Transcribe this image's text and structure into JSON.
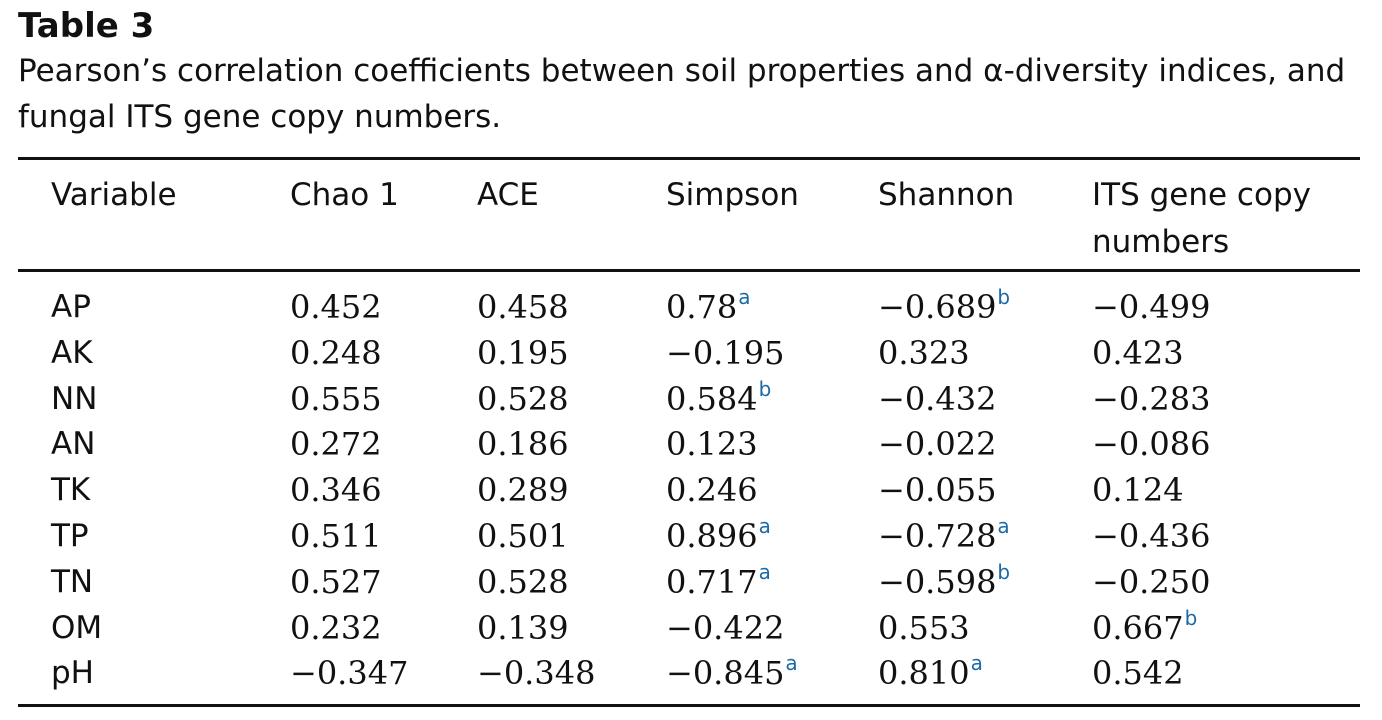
{
  "table": {
    "label": "Table 3",
    "caption": "Pearson’s correlation coefficients between soil properties and α-diversity indices, and fungal ITS gene copy numbers.",
    "columns": [
      "Variable",
      "Chao 1",
      "ACE",
      "Simpson",
      "Shannon",
      "ITS gene copy numbers"
    ],
    "rows": [
      {
        "cells": [
          {
            "v": "AP",
            "s": ""
          },
          {
            "v": "0.452",
            "s": ""
          },
          {
            "v": "0.458",
            "s": ""
          },
          {
            "v": "0.78",
            "s": "a"
          },
          {
            "v": "−0.689",
            "s": "b"
          },
          {
            "v": "−0.499",
            "s": ""
          }
        ]
      },
      {
        "cells": [
          {
            "v": "AK",
            "s": ""
          },
          {
            "v": "0.248",
            "s": ""
          },
          {
            "v": "0.195",
            "s": ""
          },
          {
            "v": "−0.195",
            "s": ""
          },
          {
            "v": "0.323",
            "s": ""
          },
          {
            "v": "0.423",
            "s": ""
          }
        ]
      },
      {
        "cells": [
          {
            "v": "NN",
            "s": ""
          },
          {
            "v": "0.555",
            "s": ""
          },
          {
            "v": "0.528",
            "s": ""
          },
          {
            "v": "0.584",
            "s": "b"
          },
          {
            "v": "−0.432",
            "s": ""
          },
          {
            "v": "−0.283",
            "s": ""
          }
        ]
      },
      {
        "cells": [
          {
            "v": "AN",
            "s": ""
          },
          {
            "v": "0.272",
            "s": ""
          },
          {
            "v": "0.186",
            "s": ""
          },
          {
            "v": "0.123",
            "s": ""
          },
          {
            "v": "−0.022",
            "s": ""
          },
          {
            "v": "−0.086",
            "s": ""
          }
        ]
      },
      {
        "cells": [
          {
            "v": "TK",
            "s": ""
          },
          {
            "v": "0.346",
            "s": ""
          },
          {
            "v": "0.289",
            "s": ""
          },
          {
            "v": "0.246",
            "s": ""
          },
          {
            "v": "−0.055",
            "s": ""
          },
          {
            "v": "0.124",
            "s": ""
          }
        ]
      },
      {
        "cells": [
          {
            "v": "TP",
            "s": ""
          },
          {
            "v": "0.511",
            "s": ""
          },
          {
            "v": "0.501",
            "s": ""
          },
          {
            "v": "0.896",
            "s": "a"
          },
          {
            "v": "−0.728",
            "s": "a"
          },
          {
            "v": "−0.436",
            "s": ""
          }
        ]
      },
      {
        "cells": [
          {
            "v": "TN",
            "s": ""
          },
          {
            "v": "0.527",
            "s": ""
          },
          {
            "v": "0.528",
            "s": ""
          },
          {
            "v": "0.717",
            "s": "a"
          },
          {
            "v": "−0.598",
            "s": "b"
          },
          {
            "v": "−0.250",
            "s": ""
          }
        ]
      },
      {
        "cells": [
          {
            "v": "OM",
            "s": ""
          },
          {
            "v": "0.232",
            "s": ""
          },
          {
            "v": "0.139",
            "s": ""
          },
          {
            "v": "−0.422",
            "s": ""
          },
          {
            "v": "0.553",
            "s": ""
          },
          {
            "v": "0.667",
            "s": "b"
          }
        ]
      },
      {
        "cells": [
          {
            "v": "pH",
            "s": ""
          },
          {
            "v": "−0.347",
            "s": ""
          },
          {
            "v": "−0.348",
            "s": ""
          },
          {
            "v": "−0.845",
            "s": "a"
          },
          {
            "v": "0.810",
            "s": "a"
          },
          {
            "v": "0.542",
            "s": ""
          }
        ]
      }
    ]
  }
}
